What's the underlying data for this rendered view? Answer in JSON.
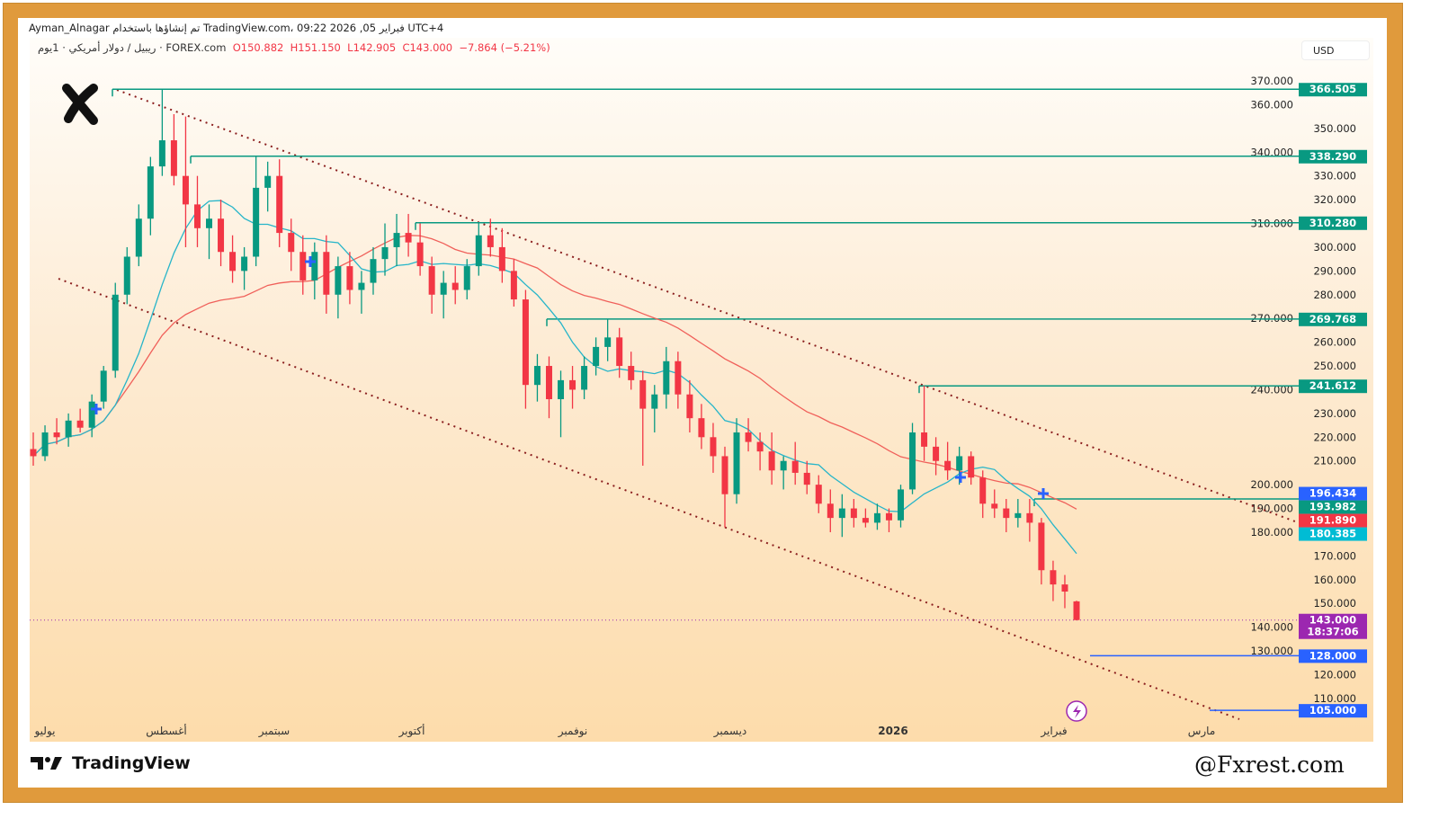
{
  "header": {
    "attribution": "Ayman_Alnagar تم إنشاؤها باستخدام TradingView.com، 09:22 2026 ,05 فبراير UTC+4"
  },
  "symbol": {
    "name": "ريبيل / دولار أمريكي · 1يوم · FOREX.com",
    "open": "O150.882",
    "high": "H151.150",
    "low": "L142.905",
    "close": "C143.000",
    "change": "−7.864 (−5.21%)"
  },
  "currency": "USD",
  "footer": {
    "brand": "TradingView",
    "watermark": "@Fxrest.com"
  },
  "colors": {
    "up": "#089981",
    "down": "#f23645",
    "ma_fast": "#26b5c9",
    "ma_slow": "#f0605a",
    "level": "#089981",
    "target": "#2962ff",
    "trend": "#8b1e1e",
    "price": "#9c27b0"
  },
  "chart_data": {
    "type": "candlestick",
    "ylim": [
      100,
      375
    ],
    "y_ticks": [
      "370.000",
      "360.000",
      "350.000",
      "340.000",
      "330.000",
      "320.000",
      "310.000",
      "300.000",
      "290.000",
      "280.000",
      "270.000",
      "260.000",
      "250.000",
      "240.000",
      "230.000",
      "220.000",
      "210.000",
      "200.000",
      "190.000",
      "180.000",
      "170.000",
      "160.000",
      "150.000",
      "140.000",
      "130.000",
      "120.000",
      "110.000"
    ],
    "x_ticks": [
      "يوليو",
      "أغسطس",
      "سبتمبر",
      "أكتوبر",
      "نوفمبر",
      "ديسمبر",
      "2026",
      "فبراير",
      "مارس"
    ],
    "candles": [
      [
        215,
        222,
        208,
        212
      ],
      [
        212,
        225,
        210,
        222
      ],
      [
        222,
        228,
        217,
        220
      ],
      [
        220,
        230,
        216,
        227
      ],
      [
        227,
        232,
        222,
        224
      ],
      [
        224,
        238,
        220,
        235
      ],
      [
        235,
        250,
        232,
        248
      ],
      [
        248,
        285,
        245,
        280
      ],
      [
        280,
        300,
        276,
        296
      ],
      [
        296,
        318,
        292,
        312
      ],
      [
        312,
        338,
        305,
        334
      ],
      [
        334,
        366.505,
        330,
        345
      ],
      [
        345,
        356,
        326,
        330
      ],
      [
        330,
        355,
        300,
        318
      ],
      [
        318,
        330,
        300,
        308
      ],
      [
        308,
        318,
        295,
        312
      ],
      [
        312,
        320,
        292,
        298
      ],
      [
        298,
        305,
        285,
        290
      ],
      [
        290,
        300,
        282,
        296
      ],
      [
        296,
        338.29,
        292,
        325
      ],
      [
        325,
        336,
        315,
        330
      ],
      [
        330,
        337,
        300,
        306
      ],
      [
        306,
        312,
        290,
        298
      ],
      [
        298,
        305,
        280,
        286
      ],
      [
        286,
        302,
        278,
        298
      ],
      [
        298,
        305,
        272,
        280
      ],
      [
        280,
        296,
        270,
        292
      ],
      [
        292,
        298,
        276,
        282
      ],
      [
        282,
        290,
        272,
        285
      ],
      [
        285,
        300,
        280,
        295
      ],
      [
        295,
        310,
        288,
        300
      ],
      [
        300,
        314,
        292,
        306
      ],
      [
        306,
        314,
        296,
        302
      ],
      [
        302,
        310,
        288,
        292
      ],
      [
        292,
        296,
        272,
        280
      ],
      [
        280,
        290,
        270,
        285
      ],
      [
        285,
        292,
        276,
        282
      ],
      [
        282,
        295,
        278,
        292
      ],
      [
        292,
        310.28,
        288,
        305
      ],
      [
        305,
        312,
        296,
        300
      ],
      [
        300,
        308,
        285,
        290
      ],
      [
        290,
        295,
        275,
        278
      ],
      [
        278,
        282,
        232,
        242
      ],
      [
        242,
        255,
        235,
        250
      ],
      [
        250,
        254,
        228,
        236
      ],
      [
        236,
        248,
        220,
        244
      ],
      [
        244,
        250,
        232,
        240
      ],
      [
        240,
        254,
        236,
        250
      ],
      [
        250,
        262,
        246,
        258
      ],
      [
        258,
        269.768,
        252,
        262
      ],
      [
        262,
        266,
        245,
        250
      ],
      [
        250,
        256,
        240,
        244
      ],
      [
        244,
        248,
        208,
        232
      ],
      [
        232,
        242,
        222,
        238
      ],
      [
        238,
        258,
        232,
        252
      ],
      [
        252,
        256,
        232,
        238
      ],
      [
        238,
        244,
        222,
        228
      ],
      [
        228,
        234,
        215,
        220
      ],
      [
        220,
        226,
        205,
        212
      ],
      [
        212,
        216,
        182,
        196
      ],
      [
        196,
        228,
        192,
        222
      ],
      [
        222,
        228,
        214,
        218
      ],
      [
        218,
        222,
        206,
        214
      ],
      [
        214,
        222,
        200,
        206
      ],
      [
        206,
        212,
        198,
        210
      ],
      [
        210,
        218,
        200,
        205
      ],
      [
        205,
        210,
        196,
        200
      ],
      [
        200,
        204,
        188,
        192
      ],
      [
        192,
        198,
        180,
        186
      ],
      [
        186,
        196,
        178,
        190
      ],
      [
        190,
        194,
        182,
        186
      ],
      [
        186,
        190,
        182,
        184
      ],
      [
        184,
        192,
        181,
        188
      ],
      [
        188,
        190,
        180,
        185
      ],
      [
        185,
        200,
        182,
        198
      ],
      [
        198,
        226,
        196,
        222
      ],
      [
        222,
        241.612,
        210,
        216
      ],
      [
        216,
        220,
        204,
        210
      ],
      [
        210,
        218,
        202,
        206
      ],
      [
        206,
        216,
        200,
        212
      ],
      [
        212,
        214,
        200,
        203
      ],
      [
        203,
        206,
        186,
        192
      ],
      [
        192,
        198,
        186,
        190
      ],
      [
        190,
        194,
        180,
        186
      ],
      [
        186,
        193.982,
        182,
        188
      ],
      [
        188,
        194,
        176,
        184
      ],
      [
        184,
        186,
        158,
        164
      ],
      [
        164,
        168,
        151,
        158
      ],
      [
        158,
        162,
        148,
        155
      ],
      [
        150.882,
        151.15,
        142.905,
        143
      ]
    ],
    "levels": [
      {
        "value": 366.505,
        "label": "366.505"
      },
      {
        "value": 338.29,
        "label": "338.290"
      },
      {
        "value": 310.28,
        "label": "310.280"
      },
      {
        "value": 269.768,
        "label": "269.768"
      },
      {
        "value": 241.612,
        "label": "241.612"
      },
      {
        "value": 193.982,
        "label": "193.982"
      }
    ],
    "targets": [
      {
        "value": 128.0,
        "label": "128.000"
      },
      {
        "value": 105.0,
        "label": "105.000"
      }
    ],
    "labels": {
      "blue": "196.434",
      "ma_slow": "191.890",
      "ma_fast": "180.385",
      "last_price": "143.000",
      "countdown": "18:37:06"
    }
  }
}
